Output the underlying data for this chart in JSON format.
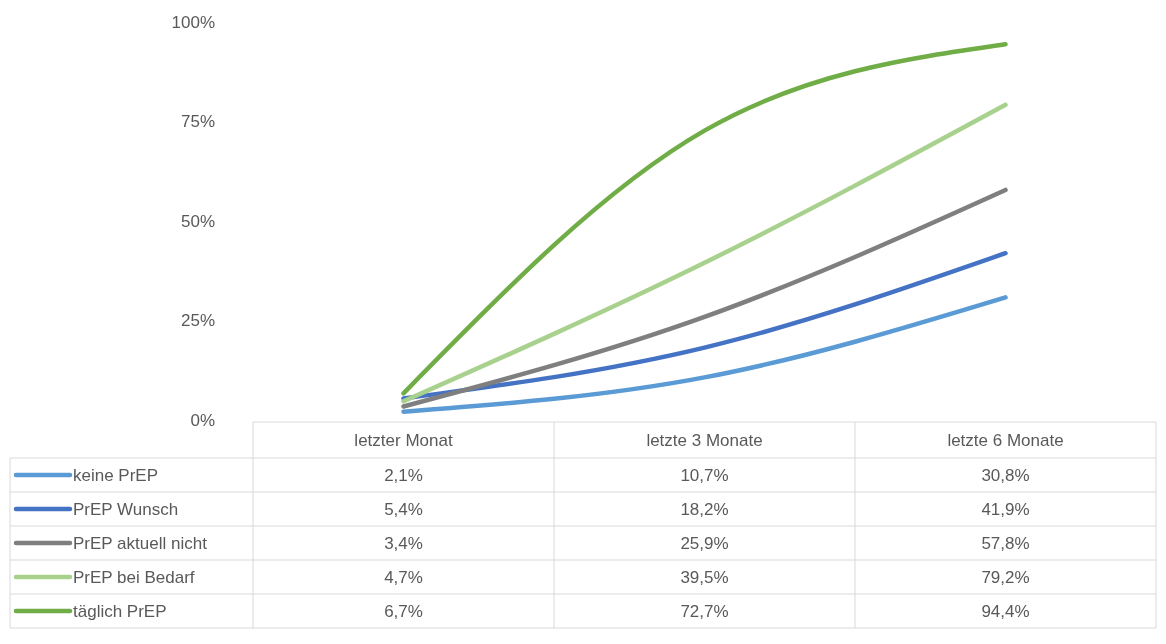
{
  "chart_data": {
    "type": "line",
    "categories": [
      "letzter Monat",
      "letzte 3 Monate",
      "letzte 6 Monate"
    ],
    "ylim": [
      0,
      100
    ],
    "yticks": [
      {
        "value": 0,
        "label": "0%"
      },
      {
        "value": 25,
        "label": "25%"
      },
      {
        "value": 50,
        "label": "50%"
      },
      {
        "value": 75,
        "label": "75%"
      },
      {
        "value": 100,
        "label": "100%"
      }
    ],
    "grid": false,
    "legend": "bottom",
    "line_style": "solid",
    "marker": "none",
    "series": [
      {
        "name": "keine PrEP",
        "color": "#5b9bd5",
        "values": [
          2.1,
          10.7,
          30.8
        ],
        "value_labels": [
          "2,1%",
          "10,7%",
          "30,8%"
        ]
      },
      {
        "name": "PrEP Wunsch",
        "color": "#4472c4",
        "values": [
          5.4,
          18.2,
          41.9
        ],
        "value_labels": [
          "5,4%",
          "18,2%",
          "41,9%"
        ]
      },
      {
        "name": "PrEP aktuell nicht",
        "color": "#7f7f7f",
        "values": [
          3.4,
          25.9,
          57.8
        ],
        "value_labels": [
          "3,4%",
          "25,9%",
          "57,8%"
        ]
      },
      {
        "name": "PrEP bei Bedarf",
        "color": "#a9d18e",
        "values": [
          4.7,
          39.5,
          79.2
        ],
        "value_labels": [
          "4,7%",
          "39,5%",
          "79,2%"
        ]
      },
      {
        "name": "täglich PrEP",
        "color": "#70ad47",
        "values": [
          6.7,
          72.7,
          94.4
        ],
        "value_labels": [
          "6,7%",
          "72,7%",
          "94,4%"
        ]
      }
    ]
  }
}
